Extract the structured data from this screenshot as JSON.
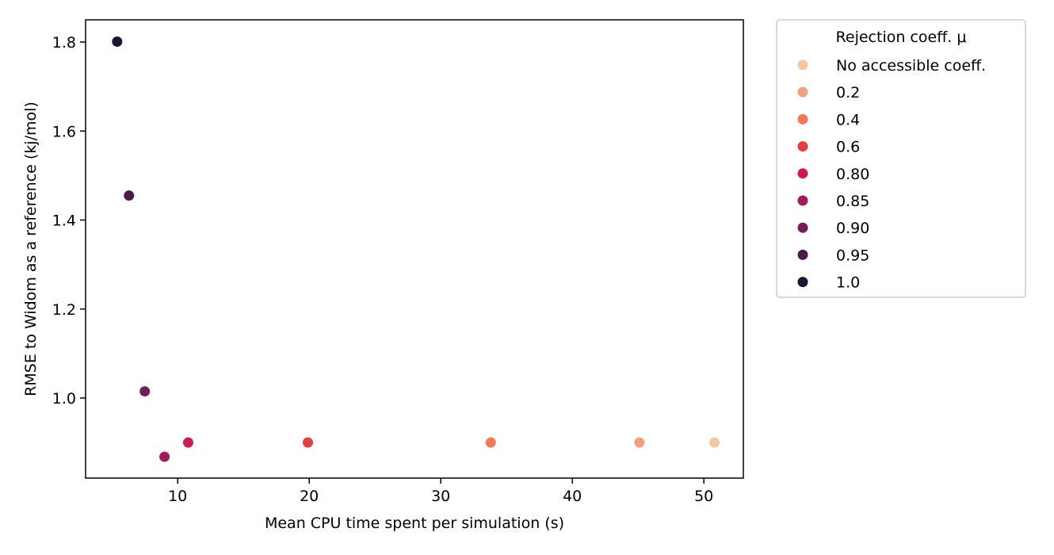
{
  "chart_data": {
    "type": "scatter",
    "xlabel": "Mean CPU time spent per simulation (s)",
    "ylabel": "RMSE to Widom as a reference (kj/mol)",
    "xlim": [
      3.0,
      53.0
    ],
    "ylim": [
      0.82,
      1.85
    ],
    "xticks": [
      10,
      20,
      30,
      40,
      50
    ],
    "yticks": [
      1.0,
      1.2,
      1.4,
      1.6,
      1.8
    ],
    "grid": false,
    "legend": {
      "title": "Rejection coeff. μ",
      "placement": "outside-upper-right"
    },
    "series": [
      {
        "name": "No accessible coeff.",
        "color": "#f4c6a4",
        "points": [
          {
            "x": 50.8,
            "y": 0.9
          }
        ]
      },
      {
        "name": "0.2",
        "color": "#f2a17f",
        "points": [
          {
            "x": 45.1,
            "y": 0.9
          }
        ]
      },
      {
        "name": "0.4",
        "color": "#ef7a55",
        "points": [
          {
            "x": 33.8,
            "y": 0.9
          }
        ]
      },
      {
        "name": "0.6",
        "color": "#e23f3f",
        "points": [
          {
            "x": 19.9,
            "y": 0.9
          }
        ]
      },
      {
        "name": "0.80",
        "color": "#cb1b51",
        "points": [
          {
            "x": 10.8,
            "y": 0.9
          }
        ]
      },
      {
        "name": "0.85",
        "color": "#a11a5b",
        "points": [
          {
            "x": 9.0,
            "y": 0.868
          }
        ]
      },
      {
        "name": "0.90",
        "color": "#721f5a",
        "points": [
          {
            "x": 7.5,
            "y": 1.015
          }
        ]
      },
      {
        "name": "0.95",
        "color": "#4a1a48",
        "points": [
          {
            "x": 6.3,
            "y": 1.455
          }
        ]
      },
      {
        "name": "1.0",
        "color": "#1f1430",
        "points": [
          {
            "x": 5.4,
            "y": 1.801
          }
        ]
      }
    ]
  }
}
